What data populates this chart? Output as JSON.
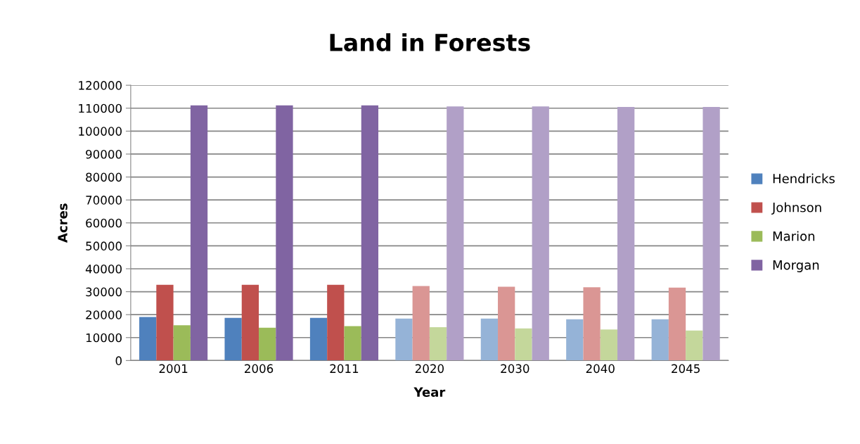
{
  "chart_data": {
    "type": "bar",
    "title": "Land in Forests",
    "xlabel": "Year",
    "ylabel": "Acres",
    "categories": [
      "2001",
      "2006",
      "2011",
      "2020",
      "2030",
      "2040",
      "2045"
    ],
    "series": [
      {
        "name": "Hendricks",
        "color": "#4f81bd",
        "colors": [
          "#4f81bd",
          "#4f81bd",
          "#4f81bd",
          "#95b3d7",
          "#95b3d7",
          "#95b3d7",
          "#95b3d7"
        ],
        "values": [
          19000,
          18600,
          18600,
          18300,
          18300,
          18000,
          18000
        ]
      },
      {
        "name": "Johnson",
        "color": "#c0504d",
        "colors": [
          "#c0504d",
          "#c0504d",
          "#c0504d",
          "#da9694",
          "#da9694",
          "#da9694",
          "#da9694"
        ],
        "values": [
          33000,
          33000,
          33000,
          32500,
          32200,
          31900,
          31800
        ]
      },
      {
        "name": "Marion",
        "color": "#9bbb59",
        "colors": [
          "#9bbb59",
          "#9bbb59",
          "#9bbb59",
          "#c4d79b",
          "#c4d79b",
          "#c4d79b",
          "#c4d79b"
        ],
        "values": [
          15400,
          14300,
          15000,
          14500,
          14000,
          13500,
          13100
        ]
      },
      {
        "name": "Morgan",
        "color": "#8064a2",
        "colors": [
          "#8064a2",
          "#8064a2",
          "#8064a2",
          "#b1a0c7",
          "#b1a0c7",
          "#b1a0c7",
          "#b1a0c7"
        ],
        "values": [
          111200,
          111200,
          111200,
          110800,
          110800,
          110500,
          110500
        ]
      }
    ],
    "ylim": [
      0,
      120000
    ],
    "yticks": [
      0,
      10000,
      20000,
      30000,
      40000,
      50000,
      60000,
      70000,
      80000,
      90000,
      100000,
      110000,
      120000
    ],
    "grid": "y",
    "legend": "right"
  }
}
